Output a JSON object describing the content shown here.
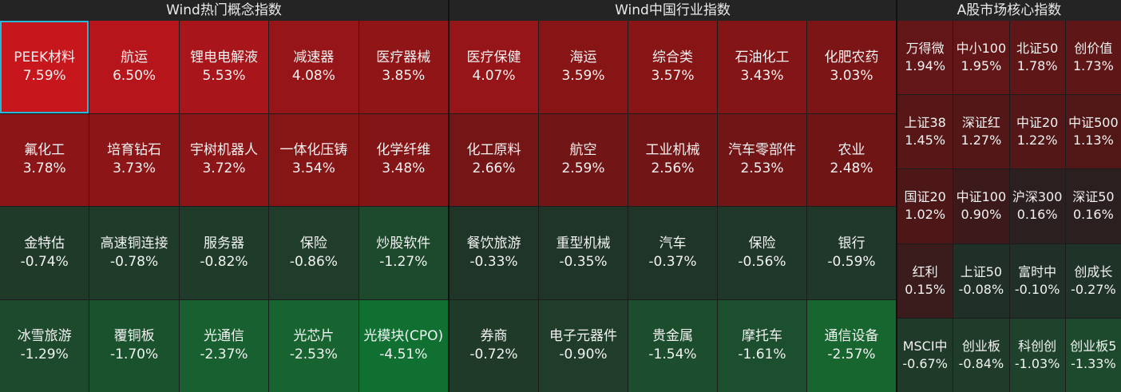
{
  "panels": [
    {
      "title": "Wind热门概念指数",
      "cols": 5,
      "tiles": [
        {
          "name": "PEEK材料",
          "value": "7.59%",
          "color": "#c8161d",
          "selected": true
        },
        {
          "name": "航运",
          "value": "6.50%",
          "color": "#b5151b"
        },
        {
          "name": "锂电电解液",
          "value": "5.53%",
          "color": "#a8151a"
        },
        {
          "name": "减速器",
          "value": "4.08%",
          "color": "#951518"
        },
        {
          "name": "医疗器械",
          "value": "3.85%",
          "color": "#8f1517"
        },
        {
          "name": "氟化工",
          "value": "3.78%",
          "color": "#8c1517"
        },
        {
          "name": "培育钻石",
          "value": "3.73%",
          "color": "#8b1517"
        },
        {
          "name": "宇树机器人",
          "value": "3.72%",
          "color": "#8b1517"
        },
        {
          "name": "一体化压铸",
          "value": "3.54%",
          "color": "#861516"
        },
        {
          "name": "化学纤维",
          "value": "3.48%",
          "color": "#841516"
        },
        {
          "name": "金特估",
          "value": "-0.74%",
          "color": "#1f3a29"
        },
        {
          "name": "高速铜连接",
          "value": "-0.78%",
          "color": "#1f3b29"
        },
        {
          "name": "服务器",
          "value": "-0.82%",
          "color": "#1f3c2a"
        },
        {
          "name": "保险",
          "value": "-0.86%",
          "color": "#1f3d2a"
        },
        {
          "name": "炒股软件",
          "value": "-1.27%",
          "color": "#1d4a2c"
        },
        {
          "name": "冰雪旅游",
          "value": "-1.29%",
          "color": "#1d4a2c"
        },
        {
          "name": "覆铜板",
          "value": "-1.70%",
          "color": "#1b522e"
        },
        {
          "name": "光通信",
          "value": "-2.37%",
          "color": "#18602f"
        },
        {
          "name": "光芯片",
          "value": "-2.53%",
          "color": "#176430"
        },
        {
          "name": "光模块(CPO)",
          "value": "-4.51%",
          "color": "#0f7032"
        }
      ]
    },
    {
      "title": "Wind中国行业指数",
      "cols": 5,
      "tiles": [
        {
          "name": "医疗保健",
          "value": "4.07%",
          "color": "#951518"
        },
        {
          "name": "海运",
          "value": "3.59%",
          "color": "#871516"
        },
        {
          "name": "综合类",
          "value": "3.57%",
          "color": "#871516"
        },
        {
          "name": "石油化工",
          "value": "3.43%",
          "color": "#831516"
        },
        {
          "name": "化肥农药",
          "value": "3.03%",
          "color": "#7c1516"
        },
        {
          "name": "化工原料",
          "value": "2.66%",
          "color": "#741516"
        },
        {
          "name": "航空",
          "value": "2.59%",
          "color": "#721516"
        },
        {
          "name": "工业机械",
          "value": "2.56%",
          "color": "#721516"
        },
        {
          "name": "汽车零部件",
          "value": "2.53%",
          "color": "#711516"
        },
        {
          "name": "农业",
          "value": "2.48%",
          "color": "#701516"
        },
        {
          "name": "餐饮旅游",
          "value": "-0.33%",
          "color": "#1f3528"
        },
        {
          "name": "重型机械",
          "value": "-0.35%",
          "color": "#1f3528"
        },
        {
          "name": "汽车",
          "value": "-0.37%",
          "color": "#1f3528"
        },
        {
          "name": "保险",
          "value": "-0.56%",
          "color": "#1f3829"
        },
        {
          "name": "银行",
          "value": "-0.59%",
          "color": "#1f3829"
        },
        {
          "name": "券商",
          "value": "-0.72%",
          "color": "#1f3a29"
        },
        {
          "name": "电子元器件",
          "value": "-0.90%",
          "color": "#1f3d2a"
        },
        {
          "name": "贵金属",
          "value": "-1.54%",
          "color": "#1c4d2d"
        },
        {
          "name": "摩托车",
          "value": "-1.61%",
          "color": "#1c4f2d"
        },
        {
          "name": "通信设备",
          "value": "-2.57%",
          "color": "#17652f"
        }
      ]
    },
    {
      "title": "A股市场核心指数",
      "cols": 4,
      "tiles": [
        {
          "name": "万得微",
          "value": "1.94%",
          "color": "#621617"
        },
        {
          "name": "中小100",
          "value": "1.95%",
          "color": "#621617"
        },
        {
          "name": "北证50",
          "value": "1.78%",
          "color": "#5f1617"
        },
        {
          "name": "创价值",
          "value": "1.73%",
          "color": "#5e1617"
        },
        {
          "name": "上证38",
          "value": "1.45%",
          "color": "#581717"
        },
        {
          "name": "深证红",
          "value": "1.27%",
          "color": "#541717"
        },
        {
          "name": "中证20",
          "value": "1.22%",
          "color": "#531717"
        },
        {
          "name": "中证500",
          "value": "1.13%",
          "color": "#511717"
        },
        {
          "name": "国证20",
          "value": "1.02%",
          "color": "#4e1717"
        },
        {
          "name": "中证100",
          "value": "0.90%",
          "color": "#3c1a1c"
        },
        {
          "name": "沪深300",
          "value": "0.16%",
          "color": "#2c1f20"
        },
        {
          "name": "深证50",
          "value": "0.16%",
          "color": "#2c1f20"
        },
        {
          "name": "红利",
          "value": "0.15%",
          "color": "#3a1c1d"
        },
        {
          "name": "上证50",
          "value": "-0.08%",
          "color": "#203028"
        },
        {
          "name": "富时中",
          "value": "-0.10%",
          "color": "#203028"
        },
        {
          "name": "创成长",
          "value": "-0.27%",
          "color": "#1f3328"
        },
        {
          "name": "MSCI中",
          "value": "-0.67%",
          "color": "#1f3a29"
        },
        {
          "name": "创业板",
          "value": "-0.84%",
          "color": "#1f3c2a"
        },
        {
          "name": "科创创",
          "value": "-1.03%",
          "color": "#1e422b"
        },
        {
          "name": "创业板5",
          "value": "-1.33%",
          "color": "#1d4a2c"
        }
      ]
    }
  ]
}
